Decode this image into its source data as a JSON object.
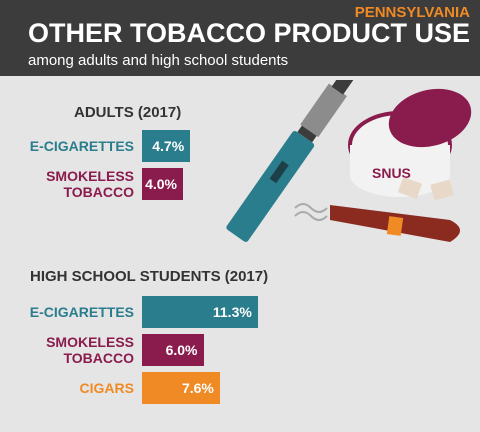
{
  "header": {
    "region": "PENNSYLVANIA",
    "title": "OTHER TOBACCO PRODUCT USE",
    "subtitle": "among adults and high school students"
  },
  "chart_data": [
    {
      "type": "bar",
      "orientation": "horizontal",
      "title": "ADULTS (2017)",
      "categories": [
        "E-CIGARETTES",
        "SMOKELESS TOBACCO"
      ],
      "values": [
        4.7,
        4.0
      ],
      "value_labels": [
        "4.7%",
        "4.0%"
      ],
      "colors": [
        "#2a7d8c",
        "#8a1c4d"
      ]
    },
    {
      "type": "bar",
      "orientation": "horizontal",
      "title": "HIGH SCHOOL STUDENTS (2017)",
      "categories": [
        "E-CIGARETTES",
        "SMOKELESS TOBACCO",
        "CIGARS"
      ],
      "values": [
        11.3,
        6.0,
        7.6
      ],
      "value_labels": [
        "11.3%",
        "6.0%",
        "7.6%"
      ],
      "colors": [
        "#2a7d8c",
        "#8a1c4d",
        "#f08a24"
      ]
    }
  ]
}
